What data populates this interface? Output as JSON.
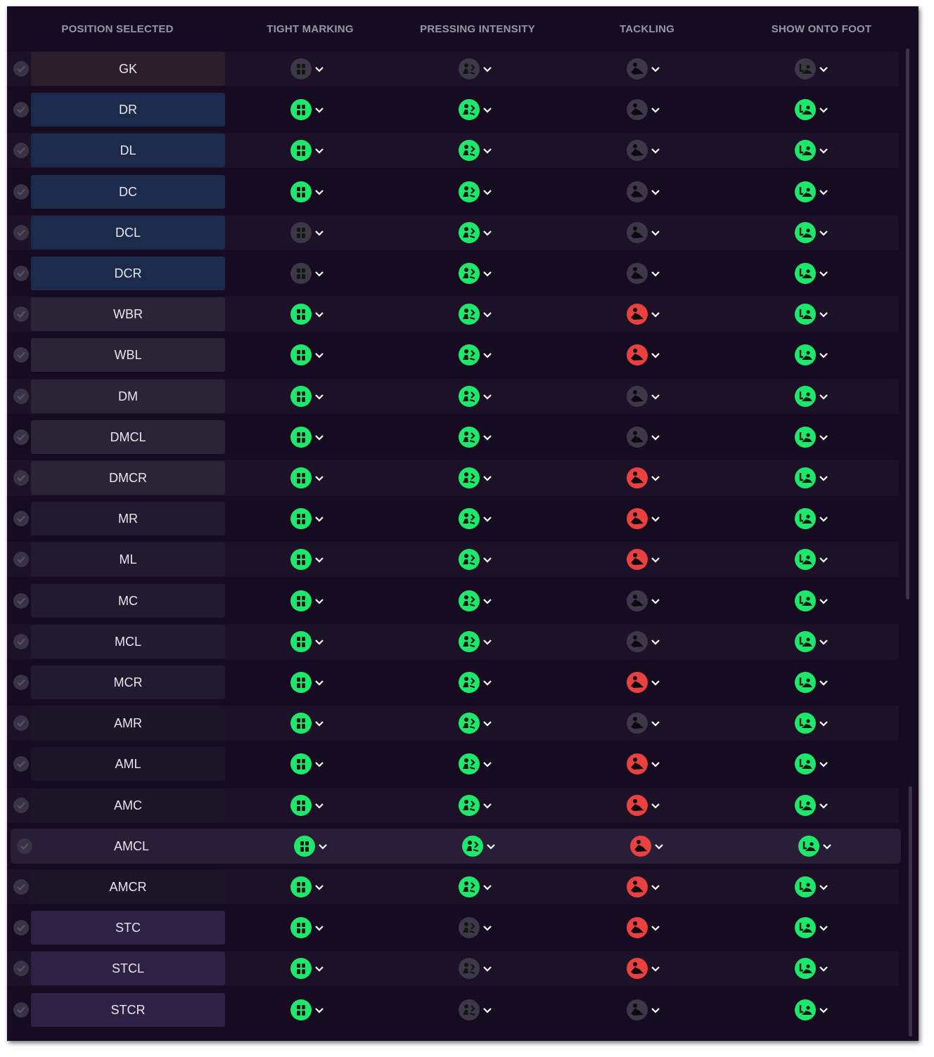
{
  "headers": {
    "position": "POSITION SELECTED",
    "tight_marking": "TIGHT MARKING",
    "pressing_intensity": "PRESSING INTENSITY",
    "tackling": "TACKLING",
    "show_onto_foot": "SHOW ONTO FOOT"
  },
  "colors": {
    "active": "#1ee86b",
    "inactive": "#3d3748",
    "warning": "#e8413f",
    "panel_bg": "#170b22",
    "header_text": "#9a94a6"
  },
  "icons": {
    "tight_marking": "marking-icon",
    "pressing_intensity": "pressing-icon",
    "tackling": "tackling-icon",
    "show_onto_foot": "foot-icon",
    "dropdown": "chevron-down-icon",
    "check": "check-icon"
  },
  "rows": [
    {
      "position": "GK",
      "pos_bg": "#2c1f2c",
      "tight_marking": "off",
      "pressing_intensity": "off",
      "tackling": "off",
      "show_onto_foot": "off"
    },
    {
      "position": "DR",
      "pos_bg": "#1c2a4b",
      "tight_marking": "on",
      "pressing_intensity": "on",
      "tackling": "off",
      "show_onto_foot": "on"
    },
    {
      "position": "DL",
      "pos_bg": "#1c2a4b",
      "tight_marking": "on",
      "pressing_intensity": "on",
      "tackling": "off",
      "show_onto_foot": "on"
    },
    {
      "position": "DC",
      "pos_bg": "#1c2a4b",
      "tight_marking": "on",
      "pressing_intensity": "on",
      "tackling": "off",
      "show_onto_foot": "on"
    },
    {
      "position": "DCL",
      "pos_bg": "#1c2a4b",
      "tight_marking": "off",
      "pressing_intensity": "on",
      "tackling": "off",
      "show_onto_foot": "on"
    },
    {
      "position": "DCR",
      "pos_bg": "#1c2a4b",
      "tight_marking": "off",
      "pressing_intensity": "on",
      "tackling": "off",
      "show_onto_foot": "on"
    },
    {
      "position": "WBR",
      "pos_bg": "#2a2437",
      "tight_marking": "on",
      "pressing_intensity": "on",
      "tackling": "warn",
      "show_onto_foot": "on"
    },
    {
      "position": "WBL",
      "pos_bg": "#2a2437",
      "tight_marking": "on",
      "pressing_intensity": "on",
      "tackling": "warn",
      "show_onto_foot": "on"
    },
    {
      "position": "DM",
      "pos_bg": "#2a2437",
      "tight_marking": "on",
      "pressing_intensity": "on",
      "tackling": "off",
      "show_onto_foot": "on"
    },
    {
      "position": "DMCL",
      "pos_bg": "#2a2437",
      "tight_marking": "on",
      "pressing_intensity": "on",
      "tackling": "off",
      "show_onto_foot": "on"
    },
    {
      "position": "DMCR",
      "pos_bg": "#2a2437",
      "tight_marking": "on",
      "pressing_intensity": "on",
      "tackling": "warn",
      "show_onto_foot": "on"
    },
    {
      "position": "MR",
      "pos_bg": "#221a30",
      "tight_marking": "on",
      "pressing_intensity": "on",
      "tackling": "warn",
      "show_onto_foot": "on"
    },
    {
      "position": "ML",
      "pos_bg": "#221a30",
      "tight_marking": "on",
      "pressing_intensity": "on",
      "tackling": "warn",
      "show_onto_foot": "on"
    },
    {
      "position": "MC",
      "pos_bg": "#221a30",
      "tight_marking": "on",
      "pressing_intensity": "on",
      "tackling": "off",
      "show_onto_foot": "on"
    },
    {
      "position": "MCL",
      "pos_bg": "#221a30",
      "tight_marking": "on",
      "pressing_intensity": "on",
      "tackling": "off",
      "show_onto_foot": "on"
    },
    {
      "position": "MCR",
      "pos_bg": "#221a30",
      "tight_marking": "on",
      "pressing_intensity": "on",
      "tackling": "warn",
      "show_onto_foot": "on"
    },
    {
      "position": "AMR",
      "pos_bg": "#1a1527",
      "tight_marking": "on",
      "pressing_intensity": "on",
      "tackling": "off",
      "show_onto_foot": "on"
    },
    {
      "position": "AML",
      "pos_bg": "#1a1527",
      "tight_marking": "on",
      "pressing_intensity": "on",
      "tackling": "warn",
      "show_onto_foot": "on"
    },
    {
      "position": "AMC",
      "pos_bg": "#1a1527",
      "tight_marking": "on",
      "pressing_intensity": "on",
      "tackling": "warn",
      "show_onto_foot": "on"
    },
    {
      "position": "AMCL",
      "pos_bg": "#2a1d38",
      "tight_marking": "on",
      "pressing_intensity": "on",
      "tackling": "warn",
      "show_onto_foot": "on"
    },
    {
      "position": "AMCR",
      "pos_bg": "#1a1527",
      "tight_marking": "on",
      "pressing_intensity": "on",
      "tackling": "warn",
      "show_onto_foot": "on"
    },
    {
      "position": "STC",
      "pos_bg": "#2d2145",
      "tight_marking": "on",
      "pressing_intensity": "off",
      "tackling": "warn",
      "show_onto_foot": "on"
    },
    {
      "position": "STCL",
      "pos_bg": "#2d2145",
      "tight_marking": "on",
      "pressing_intensity": "off",
      "tackling": "warn",
      "show_onto_foot": "on"
    },
    {
      "position": "STCR",
      "pos_bg": "#2d2145",
      "tight_marking": "on",
      "pressing_intensity": "off",
      "tackling": "off",
      "show_onto_foot": "on"
    }
  ]
}
